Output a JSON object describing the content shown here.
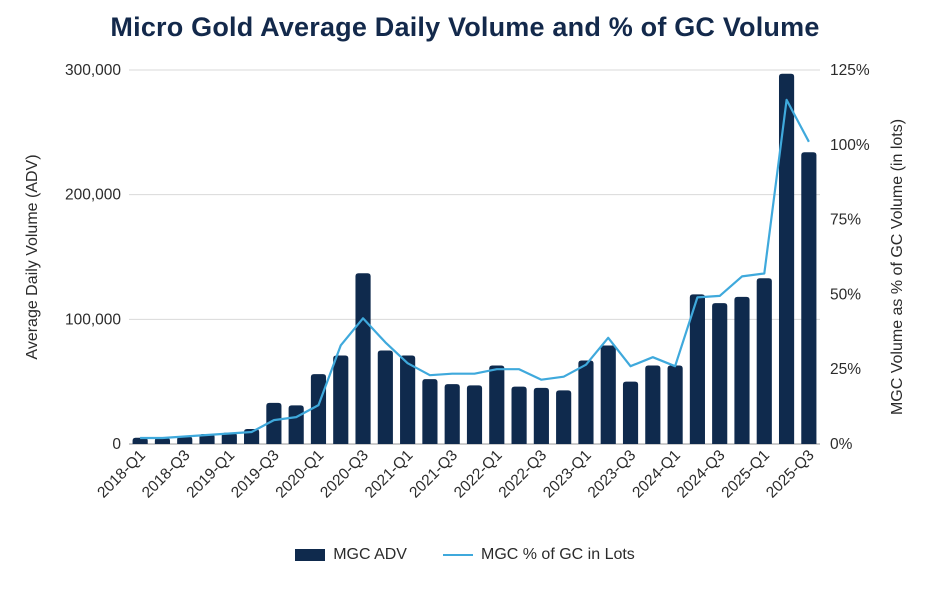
{
  "colors": {
    "bar": "#0f2a4d",
    "line": "#3fa9dc",
    "grid": "#d9d9d9",
    "title": "#13294b"
  },
  "chart_data": {
    "type": "bar",
    "title": "Micro Gold Average Daily Volume and % of GC Volume",
    "ylabel_left": "Average Daily Volume (ADV)",
    "ylabel_right": "MGC Volume as % of GC Volume (in lots)",
    "ylim_left": [
      0,
      300000
    ],
    "ylim_right": [
      0,
      125
    ],
    "yticks_left": [
      0,
      100000,
      200000,
      300000
    ],
    "yticks_left_labels": [
      "0",
      "100,000",
      "200,000",
      "300,000"
    ],
    "yticks_right": [
      0,
      25,
      50,
      75,
      100,
      125
    ],
    "yticks_right_labels": [
      "0%",
      "25%",
      "50%",
      "75%",
      "100%",
      "125%"
    ],
    "grid": true,
    "legend_position": "bottom",
    "categories": [
      "2018-Q1",
      "2018-Q2",
      "2018-Q3",
      "2018-Q4",
      "2019-Q1",
      "2019-Q2",
      "2019-Q3",
      "2019-Q4",
      "2020-Q1",
      "2020-Q2",
      "2020-Q3",
      "2020-Q4",
      "2021-Q1",
      "2021-Q2",
      "2021-Q3",
      "2021-Q4",
      "2022-Q1",
      "2022-Q2",
      "2022-Q3",
      "2022-Q4",
      "2023-Q1",
      "2023-Q2",
      "2023-Q3",
      "2023-Q4",
      "2024-Q1",
      "2024-Q2",
      "2024-Q3",
      "2024-Q4",
      "2025-Q1",
      "2025-Q2",
      "2025-Q3"
    ],
    "xtick_labels": [
      "2018-Q1",
      "2018-Q3",
      "2019-Q1",
      "2019-Q3",
      "2020-Q1",
      "2020-Q3",
      "2021-Q1",
      "2021-Q3",
      "2022-Q1",
      "2022-Q3",
      "2023-Q1",
      "2023-Q3",
      "2024-Q1",
      "2024-Q3",
      "2025-Q1",
      "2025-Q3"
    ],
    "series": [
      {
        "name": "MGC ADV",
        "type": "bar",
        "axis": "left",
        "values": [
          5000,
          5000,
          6000,
          8000,
          9000,
          12000,
          33000,
          31000,
          56000,
          71000,
          137000,
          75000,
          71000,
          52000,
          48000,
          47000,
          63000,
          46000,
          45000,
          43000,
          67000,
          79000,
          50000,
          63000,
          63000,
          120000,
          113000,
          118000,
          133000,
          297000,
          234000
        ]
      },
      {
        "name": "MGC % of GC in Lots",
        "type": "line",
        "axis": "right",
        "values": [
          2,
          2,
          2.5,
          3,
          3.5,
          4,
          8,
          9,
          13,
          33,
          42,
          34,
          27,
          23,
          23.5,
          23.5,
          25,
          25,
          21.5,
          22.5,
          26.5,
          35.5,
          26,
          29,
          26,
          49,
          49.5,
          56,
          57,
          115,
          101
        ]
      }
    ]
  }
}
